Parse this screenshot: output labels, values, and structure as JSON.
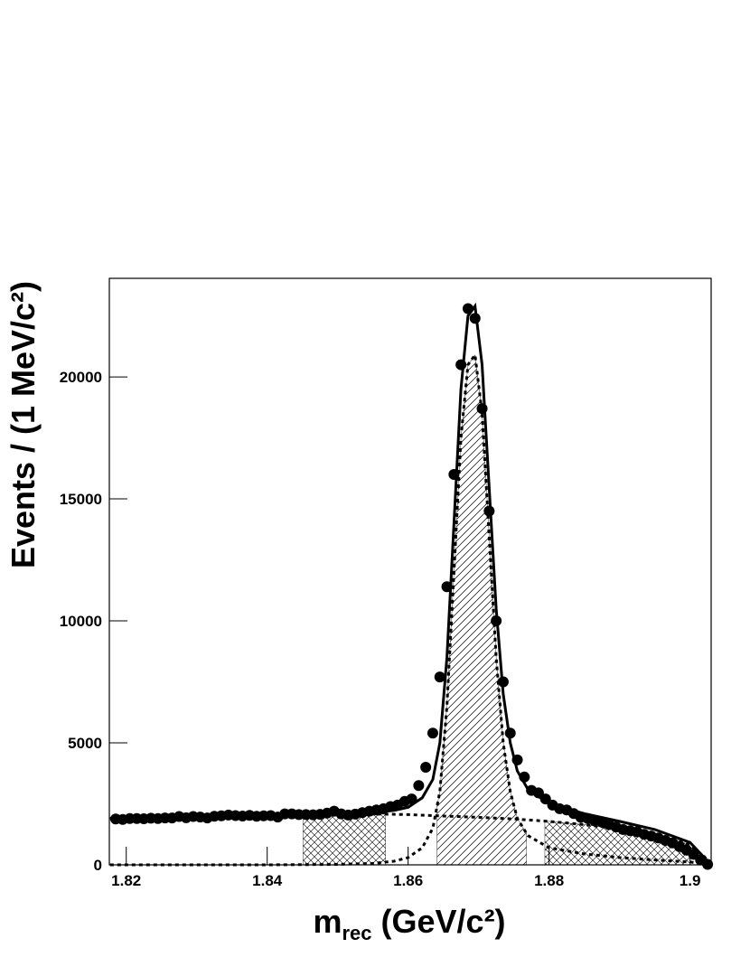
{
  "chart_data": {
    "type": "scatter",
    "y_label": "Events / (1 MeV/c²)",
    "x_label": [
      "m",
      "rec",
      " (GeV/c²)"
    ],
    "xlim": [
      1.8176,
      1.903
    ],
    "ylim": [
      0,
      24040
    ],
    "xticks": [
      1.82,
      1.84,
      1.86,
      1.88,
      1.9
    ],
    "yticks": [
      0,
      5000,
      10000,
      15000,
      20000
    ],
    "series": [
      {
        "marker": "circle",
        "color": "#000000",
        "x": [
          1.8185,
          1.8195,
          1.8205,
          1.8215,
          1.8225,
          1.8235,
          1.8245,
          1.8255,
          1.8265,
          1.8275,
          1.8285,
          1.8295,
          1.8305,
          1.8315,
          1.8325,
          1.8335,
          1.8345,
          1.8355,
          1.8365,
          1.8375,
          1.8385,
          1.8395,
          1.8405,
          1.8415,
          1.8425,
          1.8435,
          1.8445,
          1.8455,
          1.8465,
          1.8475,
          1.8485,
          1.8495,
          1.8505,
          1.8515,
          1.8525,
          1.8535,
          1.8545,
          1.8555,
          1.8565,
          1.8575,
          1.8585,
          1.8595,
          1.8605,
          1.8615,
          1.8625,
          1.8635,
          1.8645,
          1.8655,
          1.8665,
          1.8675,
          1.8685,
          1.8695,
          1.8705,
          1.8715,
          1.8725,
          1.8735,
          1.8745,
          1.8755,
          1.8765,
          1.8775,
          1.8785,
          1.8795,
          1.8805,
          1.8815,
          1.8825,
          1.8835,
          1.8845,
          1.8855,
          1.8865,
          1.8875,
          1.8885,
          1.8895,
          1.8905,
          1.8915,
          1.8925,
          1.8935,
          1.8945,
          1.8955,
          1.8965,
          1.8975,
          1.8985,
          1.8995,
          1.9005,
          1.9015,
          1.9025
        ],
        "values": [
          1880,
          1860,
          1900,
          1900,
          1890,
          1910,
          1900,
          1920,
          1920,
          1980,
          1930,
          1980,
          1960,
          1920,
          1990,
          2010,
          2040,
          2020,
          2000,
          2030,
          1990,
          2010,
          2020,
          1960,
          2090,
          2090,
          2060,
          2060,
          2050,
          2070,
          2120,
          2200,
          2090,
          2040,
          2080,
          2140,
          2200,
          2250,
          2300,
          2390,
          2450,
          2600,
          2700,
          3250,
          4000,
          5400,
          7700,
          11400,
          16000,
          20500,
          22800,
          22400,
          18700,
          14500,
          10000,
          7500,
          5400,
          4300,
          3600,
          3050,
          2950,
          2700,
          2450,
          2300,
          2250,
          2100,
          1950,
          1900,
          1800,
          1750,
          1650,
          1550,
          1450,
          1400,
          1350,
          1250,
          1180,
          1100,
          1000,
          900,
          750,
          600,
          430,
          200,
          20
        ]
      },
      {
        "line": "solid",
        "color": "#000000",
        "x": [
          1.8177,
          1.84,
          1.85,
          1.855,
          1.858,
          1.86,
          1.862,
          1.8635,
          1.8645,
          1.8655,
          1.8665,
          1.8675,
          1.8685,
          1.8695,
          1.8705,
          1.8715,
          1.8725,
          1.8735,
          1.8745,
          1.8755,
          1.877,
          1.88,
          1.885,
          1.89,
          1.895,
          1.9,
          1.903
        ],
        "values": [
          1900,
          2020,
          2080,
          2140,
          2230,
          2360,
          2750,
          3500,
          5000,
          8500,
          14000,
          19500,
          22500,
          22900,
          20500,
          15500,
          10500,
          7000,
          5000,
          3850,
          3100,
          2500,
          2100,
          1780,
          1450,
          920,
          0
        ]
      },
      {
        "line": "dotted",
        "color": "#000000",
        "x": [
          1.8177,
          1.84,
          1.85,
          1.855,
          1.858,
          1.86,
          1.862,
          1.8635,
          1.8645,
          1.8655,
          1.8665,
          1.8675,
          1.8685,
          1.8695,
          1.8705,
          1.8715,
          1.8725,
          1.8735,
          1.8745,
          1.8755,
          1.877,
          1.88,
          1.885,
          1.89,
          1.895,
          1.9,
          1.903
        ],
        "values": [
          0,
          0,
          20,
          60,
          150,
          300,
          700,
          1500,
          3000,
          6500,
          12000,
          17500,
          20500,
          20900,
          18500,
          13500,
          8500,
          5000,
          3000,
          1900,
          1200,
          700,
          450,
          300,
          200,
          120,
          0
        ]
      },
      {
        "line": "dotted",
        "color": "#000000",
        "x": [
          1.8177,
          1.83,
          1.84,
          1.85,
          1.856,
          1.86,
          1.865,
          1.87,
          1.875,
          1.88,
          1.885,
          1.89,
          1.895,
          1.898,
          1.9,
          1.902,
          1.903
        ],
        "values": [
          1900,
          1970,
          2020,
          2060,
          2080,
          2060,
          2000,
          1950,
          1880,
          1780,
          1650,
          1480,
          1250,
          1050,
          800,
          350,
          0
        ]
      }
    ],
    "regions": [
      {
        "x0": 1.8451,
        "x1": 1.8568,
        "pattern": "crosshatch",
        "under": 3
      },
      {
        "x0": 1.8641,
        "x1": 1.8768,
        "pattern": "diagonal",
        "under": 2
      },
      {
        "x0": 1.8794,
        "x1": 1.9,
        "pattern": "crosshatch",
        "under": 3
      }
    ]
  }
}
